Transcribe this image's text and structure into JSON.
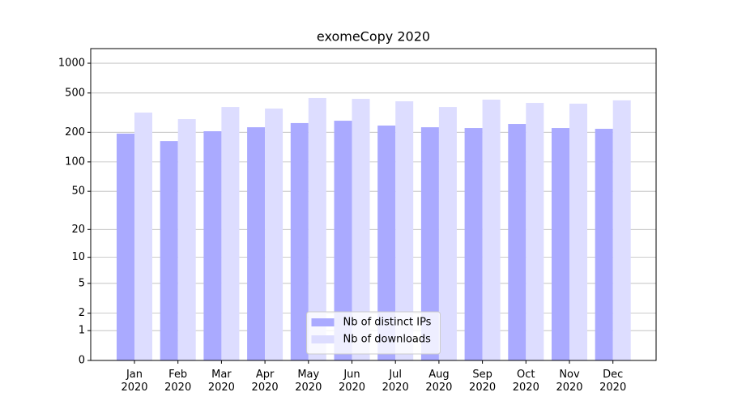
{
  "chart_data": {
    "type": "bar",
    "title": "exomeCopy 2020",
    "categories": [
      "Jan\n2020",
      "Feb\n2020",
      "Mar\n2020",
      "Apr\n2020",
      "May\n2020",
      "Jun\n2020",
      "Jul\n2020",
      "Aug\n2020",
      "Sep\n2020",
      "Oct\n2020",
      "Nov\n2020",
      "Dec\n2020"
    ],
    "series": [
      {
        "name": "Nb of distinct IPs",
        "color": "#aaaaff",
        "values": [
          194,
          163,
          205,
          225,
          248,
          262,
          234,
          225,
          221,
          243,
          221,
          217
        ]
      },
      {
        "name": "Nb of downloads",
        "color": "#ddddff",
        "values": [
          317,
          272,
          361,
          348,
          445,
          436,
          412,
          361,
          428,
          397,
          390,
          421
        ]
      }
    ],
    "yscale": "log1p",
    "ylim": [
      0,
      1405
    ],
    "yticks": [
      0,
      1,
      2,
      5,
      10,
      20,
      50,
      100,
      200,
      500,
      1000
    ],
    "grid": true,
    "legend": "lower center"
  }
}
